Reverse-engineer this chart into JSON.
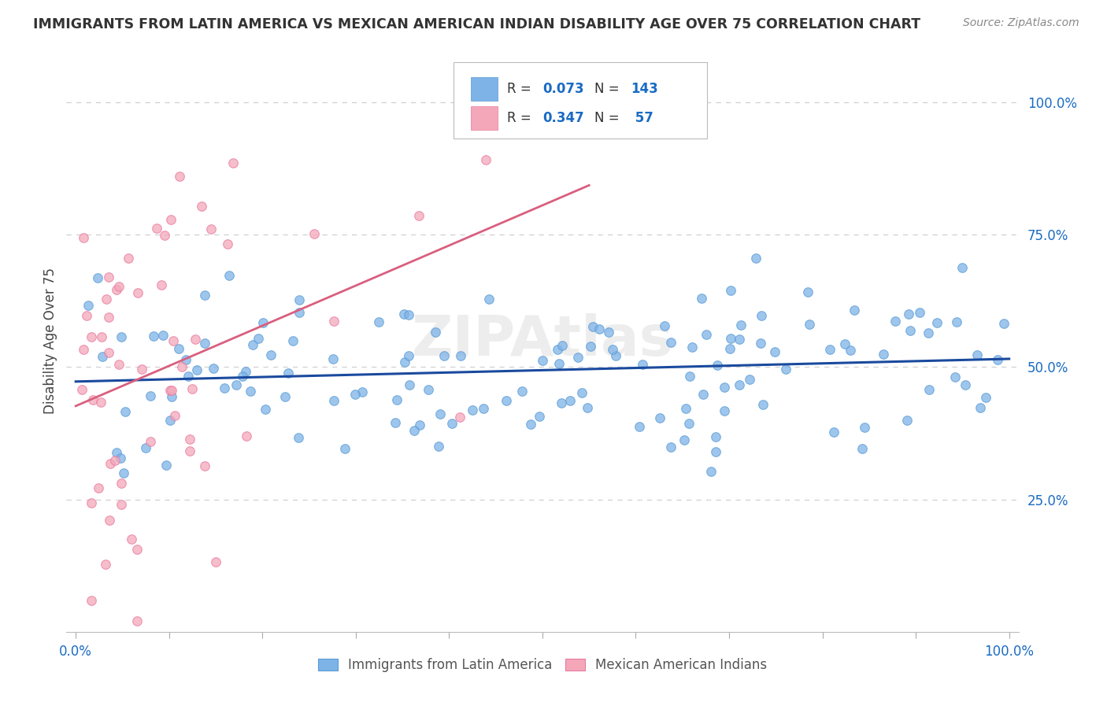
{
  "title": "IMMIGRANTS FROM LATIN AMERICA VS MEXICAN AMERICAN INDIAN DISABILITY AGE OVER 75 CORRELATION CHART",
  "source": "Source: ZipAtlas.com",
  "ylabel": "Disability Age Over 75",
  "legend_blue_r": "0.073",
  "legend_blue_n": "143",
  "legend_pink_r": "0.347",
  "legend_pink_n": " 57",
  "legend_label_blue": "Immigrants from Latin America",
  "legend_label_pink": "Mexican American Indians",
  "blue_color": "#7EB3E8",
  "pink_color": "#F4A7B9",
  "blue_edge_color": "#5A9BD4",
  "pink_edge_color": "#E87AA0",
  "blue_line_color": "#1A4A9E",
  "pink_line_color": "#D95F7F",
  "title_color": "#333333",
  "axis_label_color": "#1A6BC4",
  "grid_color": "#D0D0D0",
  "blue_R": 0.073,
  "pink_R": 0.347,
  "blue_N": 143,
  "pink_N": 57,
  "xlim": [
    0.0,
    1.0
  ],
  "ylim": [
    0.0,
    1.1
  ],
  "yticks": [
    0.25,
    0.5,
    0.75,
    1.0
  ],
  "ytick_labels": [
    "25.0%",
    "50.0%",
    "75.0%",
    "100.0%"
  ],
  "xtick_labels_show": [
    "0.0%",
    "100.0%"
  ],
  "watermark_text": "ZIPAtlas",
  "seed_blue": 101,
  "seed_pink": 202
}
